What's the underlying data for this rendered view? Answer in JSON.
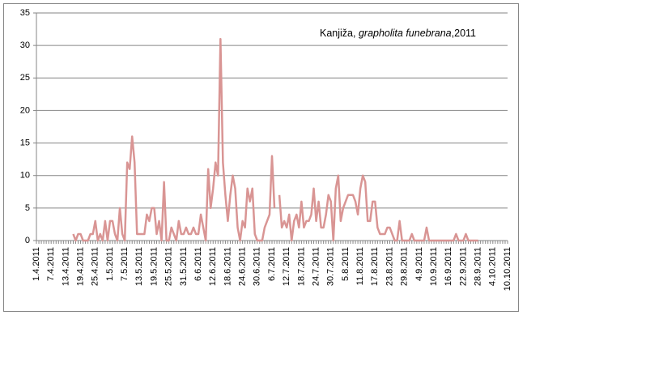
{
  "chart_data": {
    "type": "line",
    "title": [
      "Kanjiža, ",
      "grapholita funebrana",
      ",2011"
    ],
    "categories": [
      "1.4.2011",
      null,
      null,
      null,
      null,
      null,
      "7.4.2011",
      null,
      null,
      null,
      null,
      null,
      "13.4.2011",
      null,
      null,
      null,
      null,
      null,
      "19.4.2011",
      null,
      null,
      null,
      null,
      null,
      "25.4.2011",
      null,
      null,
      null,
      null,
      null,
      "1.5.2011",
      null,
      null,
      null,
      null,
      null,
      "7.5.2011",
      null,
      null,
      null,
      null,
      null,
      "13.5.2011",
      null,
      null,
      null,
      null,
      null,
      "19.5.2011",
      null,
      null,
      null,
      null,
      null,
      "25.5.2011",
      null,
      null,
      null,
      null,
      null,
      "31.5.2011",
      null,
      null,
      null,
      null,
      null,
      "6.6.2011",
      null,
      null,
      null,
      null,
      null,
      "12.6.2011",
      null,
      null,
      null,
      null,
      null,
      "18.6.2011",
      null,
      null,
      null,
      null,
      null,
      "24.6.2011",
      null,
      null,
      null,
      null,
      null,
      "30.6.2011",
      null,
      null,
      null,
      null,
      null,
      "6.7.2011",
      null,
      null,
      null,
      null,
      null,
      "12.7.2011",
      null,
      null,
      null,
      null,
      null,
      "18.7.2011",
      null,
      null,
      null,
      null,
      null,
      "24.7.2011",
      null,
      null,
      null,
      null,
      null,
      "30.7.2011",
      null,
      null,
      null,
      null,
      null,
      "5.8.2011",
      null,
      null,
      null,
      null,
      null,
      "11.8.2011",
      null,
      null,
      null,
      null,
      null,
      "17.8.2011",
      null,
      null,
      null,
      null,
      null,
      "23.8.2011",
      null,
      null,
      null,
      null,
      null,
      "29.8.2011",
      null,
      null,
      null,
      null,
      null,
      "4.9.2011",
      null,
      null,
      null,
      null,
      null,
      "10.9.2011",
      null,
      null,
      null,
      null,
      null,
      "16.9.2011",
      null,
      null,
      null,
      null,
      null,
      "22.9.2011",
      null,
      null,
      null,
      null,
      null,
      "28.9.2011",
      null,
      null,
      null,
      null,
      null,
      "4.10.2011",
      null,
      null,
      null,
      null,
      null,
      "10.10.2011"
    ],
    "values": [
      null,
      null,
      null,
      null,
      null,
      null,
      null,
      null,
      null,
      null,
      null,
      null,
      null,
      null,
      null,
      1,
      0,
      1,
      1,
      0,
      0,
      0,
      1,
      1,
      3,
      0,
      1,
      0,
      3,
      0,
      3,
      3,
      1,
      0,
      5,
      1,
      0,
      12,
      11,
      16,
      12,
      1,
      1,
      1,
      1,
      4,
      3,
      5,
      5,
      1,
      3,
      0,
      9,
      0,
      0,
      2,
      1,
      0,
      3,
      1,
      1,
      2,
      1,
      1,
      2,
      1,
      1,
      4,
      2,
      0,
      11,
      5,
      8,
      12,
      10,
      31,
      12,
      7,
      3,
      7,
      10,
      8,
      2,
      0,
      3,
      2,
      8,
      6,
      8,
      1,
      0,
      0,
      0,
      2,
      3,
      4,
      13,
      5,
      null,
      7,
      2,
      3,
      2,
      4,
      0,
      3,
      4,
      2,
      6,
      2,
      3,
      3,
      4,
      8,
      3,
      6,
      2,
      2,
      4,
      7,
      6,
      0,
      8,
      10,
      3,
      5,
      6,
      7,
      7,
      7,
      6,
      4,
      8,
      10,
      9,
      3,
      3,
      6,
      6,
      2,
      1,
      1,
      1,
      2,
      2,
      1,
      0,
      0,
      3,
      0,
      0,
      0,
      0,
      1,
      0,
      0,
      0,
      0,
      0,
      2,
      0,
      0,
      0,
      0,
      0,
      0,
      0,
      0,
      0,
      0,
      0,
      1,
      0,
      0,
      0,
      1,
      0,
      0,
      0,
      0,
      0,
      null,
      null,
      null,
      null,
      null,
      null,
      null,
      null,
      null,
      null,
      null,
      null
    ],
    "color": "#d99594",
    "ylim": [
      0,
      35
    ],
    "yticks": [
      0,
      5,
      10,
      15,
      20,
      25,
      30,
      35
    ],
    "grid": true
  }
}
